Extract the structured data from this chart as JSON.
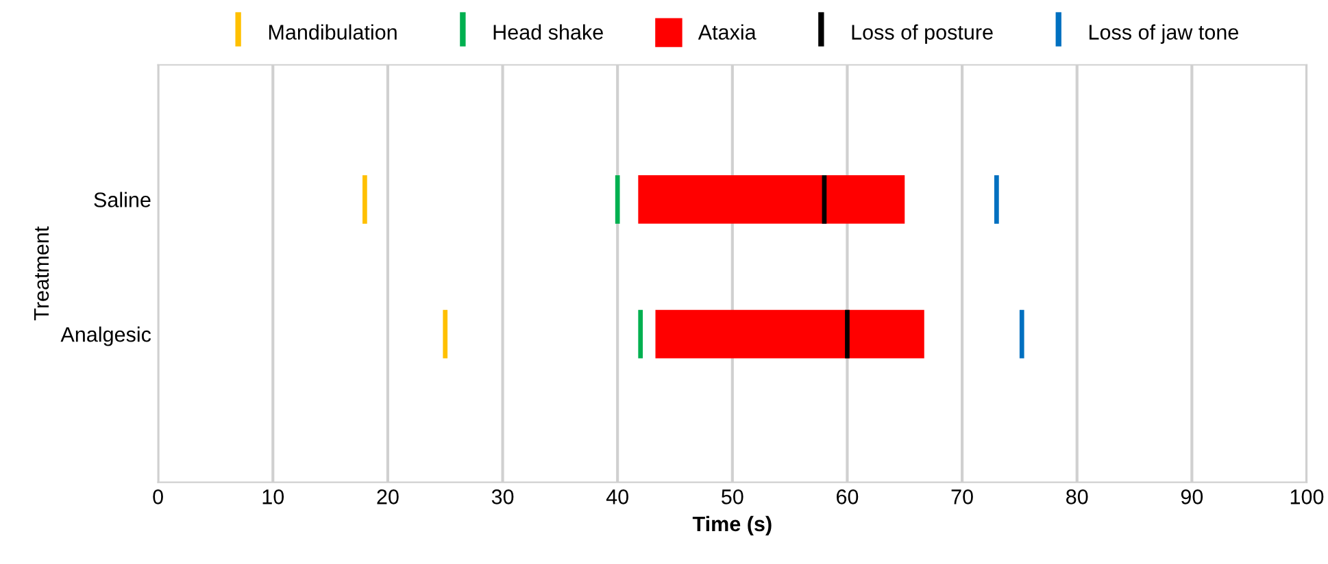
{
  "chart_data": {
    "type": "bar",
    "orientation": "horizontal",
    "xlabel": "Time (s)",
    "ylabel": "Treatment",
    "categories": [
      "Saline",
      "Analgesic"
    ],
    "series": [
      {
        "name": "Mandibulation",
        "color": "#ffc000",
        "base": [
          17.8,
          24.8
        ],
        "values": [
          0.4,
          0.4
        ]
      },
      {
        "name": "Head shake",
        "color": "#00b050",
        "base": [
          39.8,
          41.8
        ],
        "values": [
          0.4,
          0.4
        ]
      },
      {
        "name": "Ataxia",
        "color": "#ff0000",
        "base": [
          41.8,
          43.3
        ],
        "values": [
          23.2,
          23.4
        ]
      },
      {
        "name": "Loss of posture",
        "color": "#000000",
        "base": [
          57.8,
          59.8
        ],
        "values": [
          0.4,
          0.4
        ]
      },
      {
        "name": "Loss of jaw tone",
        "color": "#0070c0",
        "base": [
          72.8,
          75.0
        ],
        "values": [
          0.4,
          0.4
        ]
      }
    ],
    "xlim": [
      0,
      100
    ],
    "xticks": [
      0,
      10,
      20,
      30,
      40,
      50,
      60,
      70,
      80,
      90,
      100
    ],
    "grid": "x",
    "legend": "top"
  }
}
